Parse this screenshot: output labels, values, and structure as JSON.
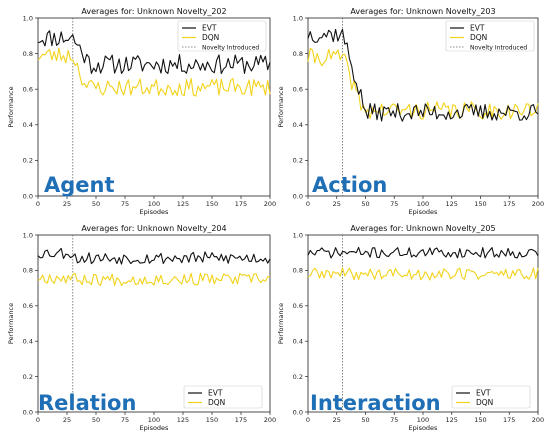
{
  "colors": {
    "evt": "#111111",
    "dqn": "#f2d21b",
    "novelty": "#666666",
    "overlay": "#1f6fb6"
  },
  "chart_data": [
    {
      "type": "line",
      "title": "Averages for: Unknown Novelty_202",
      "xlabel": "Episodes",
      "ylabel": "Performance",
      "xlim": [
        0,
        200
      ],
      "ylim": [
        0.0,
        1.0
      ],
      "xticks": [
        "0",
        "25",
        "50",
        "75",
        "100",
        "125",
        "150",
        "175",
        "200"
      ],
      "yticks": [
        "0.0",
        "0.2",
        "0.4",
        "0.6",
        "0.8",
        "1.0"
      ],
      "novelty_episode": 30,
      "legend": {
        "placement": "top-right",
        "entries": [
          "EVT",
          "DQN",
          "Novelty Introduced"
        ]
      },
      "overlay_label": "Agent",
      "series": [
        {
          "name": "EVT",
          "pre": 0.89,
          "post": 0.74,
          "drop_len": 15
        },
        {
          "name": "DQN",
          "pre": 0.79,
          "post": 0.61,
          "drop_len": 12
        }
      ]
    },
    {
      "type": "line",
      "title": "Averages for: Unknown Novelty_203",
      "xlabel": "Episodes",
      "ylabel": "Performance",
      "xlim": [
        0,
        200
      ],
      "ylim": [
        0.0,
        1.0
      ],
      "xticks": [
        "0",
        "25",
        "50",
        "75",
        "100",
        "125",
        "150",
        "175",
        "200"
      ],
      "yticks": [
        "0.0",
        "0.2",
        "0.4",
        "0.6",
        "0.8",
        "1.0"
      ],
      "novelty_episode": 30,
      "legend": {
        "placement": "top-right",
        "entries": [
          "EVT",
          "DQN",
          "Novelty Introduced"
        ]
      },
      "overlay_label": "Action",
      "series": [
        {
          "name": "EVT",
          "pre": 0.91,
          "post": 0.47,
          "drop_len": 20
        },
        {
          "name": "DQN",
          "pre": 0.78,
          "post": 0.48,
          "drop_len": 18
        }
      ]
    },
    {
      "type": "line",
      "title": "Averages for: Unknown Novelty_204",
      "xlabel": "Episodes",
      "ylabel": "Performance",
      "xlim": [
        0,
        200
      ],
      "ylim": [
        0.0,
        1.0
      ],
      "xticks": [
        "0",
        "25",
        "50",
        "75",
        "100",
        "125",
        "150",
        "175",
        "200"
      ],
      "yticks": [
        "0.0",
        "0.2",
        "0.4",
        "0.6",
        "0.8",
        "1.0"
      ],
      "novelty_episode": 30,
      "legend": {
        "placement": "lower-right",
        "entries": [
          "EVT",
          "DQN"
        ]
      },
      "overlay_label": "Relation",
      "series": [
        {
          "name": "EVT",
          "pre": 0.9,
          "post": 0.87,
          "drop_len": 1
        },
        {
          "name": "DQN",
          "pre": 0.76,
          "post": 0.75,
          "drop_len": 1
        }
      ]
    },
    {
      "type": "line",
      "title": "Averages for: Unknown Novelty_205",
      "xlabel": "Episodes",
      "ylabel": "Performance",
      "xlim": [
        0,
        200
      ],
      "ylim": [
        0.0,
        1.0
      ],
      "xticks": [
        "0",
        "25",
        "50",
        "75",
        "100",
        "125",
        "150",
        "175",
        "200"
      ],
      "yticks": [
        "0.0",
        "0.2",
        "0.4",
        "0.6",
        "0.8",
        "1.0"
      ],
      "novelty_episode": 30,
      "legend": {
        "placement": "lower-right",
        "entries": [
          "EVT",
          "DQN"
        ]
      },
      "overlay_label": "Interaction",
      "series": [
        {
          "name": "EVT",
          "pre": 0.9,
          "post": 0.9,
          "drop_len": 1
        },
        {
          "name": "DQN",
          "pre": 0.78,
          "post": 0.78,
          "drop_len": 1
        }
      ]
    }
  ]
}
